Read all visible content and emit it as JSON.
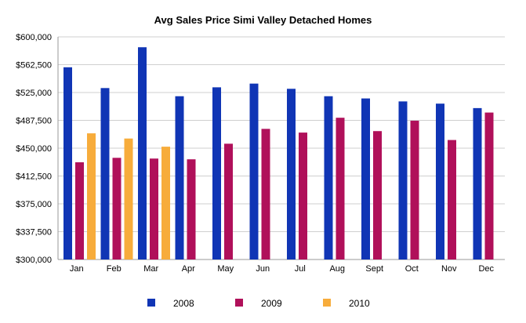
{
  "chart_data": {
    "type": "bar",
    "title": "Avg Sales Price Simi Valley Detached Homes",
    "xlabel": "",
    "ylabel": "",
    "categories": [
      "Jan",
      "Feb",
      "Mar",
      "Apr",
      "May",
      "Jun",
      "Jul",
      "Aug",
      "Sept",
      "Oct",
      "Nov",
      "Dec"
    ],
    "ylim": [
      300000,
      600000
    ],
    "yticks": [
      300000,
      337500,
      375000,
      412500,
      450000,
      487500,
      525000,
      562500,
      600000
    ],
    "ytick_labels": [
      "$300,000",
      "$337,500",
      "$375,000",
      "$412,500",
      "$450,000",
      "$487,500",
      "$525,000",
      "$562,500",
      "$600,000"
    ],
    "grid": true,
    "legend_position": "bottom",
    "series": [
      {
        "name": "2008",
        "color": "#1035b5",
        "values": [
          559000,
          531000,
          586000,
          520000,
          532000,
          537000,
          530000,
          520000,
          517000,
          513000,
          510000,
          504000
        ]
      },
      {
        "name": "2009",
        "color": "#b0105a",
        "values": [
          431000,
          437000,
          436000,
          435000,
          456000,
          476000,
          471000,
          491000,
          473000,
          487000,
          461000,
          498000
        ]
      },
      {
        "name": "2010",
        "color": "#f7ac3b",
        "values": [
          470000,
          463000,
          452000,
          null,
          null,
          null,
          null,
          null,
          null,
          null,
          null,
          null
        ]
      }
    ]
  }
}
